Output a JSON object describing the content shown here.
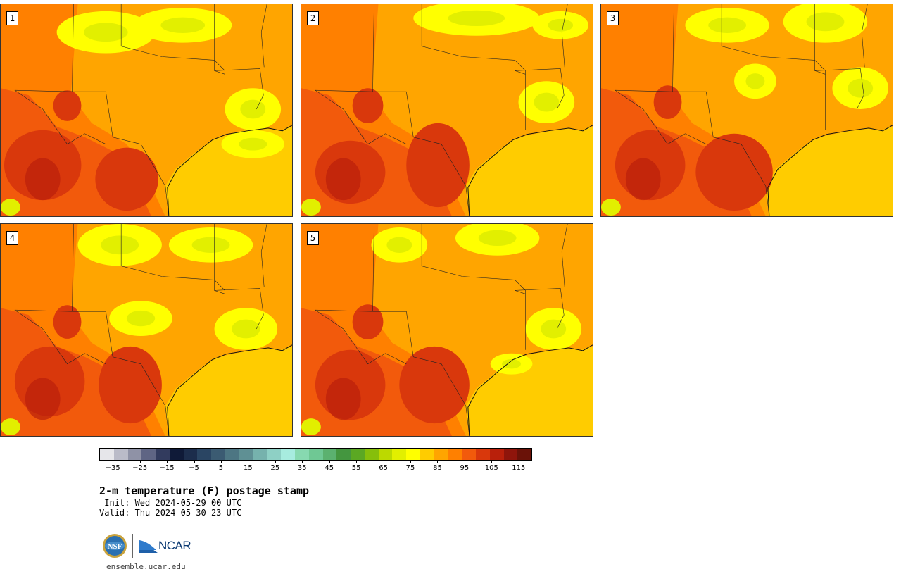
{
  "panels": [
    {
      "label": "1"
    },
    {
      "label": "2"
    },
    {
      "label": "3"
    },
    {
      "label": "4"
    },
    {
      "label": "5"
    }
  ],
  "colorbar": {
    "colors": [
      "#e6e6ea",
      "#babbc8",
      "#8f92a6",
      "#5f6584",
      "#323b5e",
      "#0f1a38",
      "#1c2d4c",
      "#2a4563",
      "#3b5b72",
      "#4d7683",
      "#5f9094",
      "#76b2ad",
      "#8ed0c5",
      "#a7ecdf",
      "#87d9b0",
      "#6fc894",
      "#5bb16f",
      "#44963f",
      "#5ba823",
      "#86bf0b",
      "#bcd900",
      "#e2ef00",
      "#ffff00",
      "#ffcc00",
      "#ffa500",
      "#ff8000",
      "#f25a0c",
      "#d9380c",
      "#b9200b",
      "#8f150b",
      "#6a1208"
    ],
    "tick_values": [
      -35,
      -25,
      -15,
      -5,
      5,
      15,
      25,
      35,
      45,
      55,
      65,
      75,
      85,
      95,
      105,
      115
    ],
    "tick_labels": [
      "−35",
      "−25",
      "−15",
      "−5",
      "5",
      "15",
      "25",
      "35",
      "45",
      "55",
      "65",
      "75",
      "85",
      "95",
      "105",
      "115"
    ],
    "min": -40,
    "max": 120
  },
  "title": "2-m temperature (F) postage stamp",
  "init": " Init: Wed 2024-05-29 00 UTC",
  "valid": "Valid: Thu 2024-05-30 23 UTC",
  "logos": {
    "nsf": "NSF",
    "ncar": "NCAR"
  },
  "url": "ensemble.ucar.edu"
}
